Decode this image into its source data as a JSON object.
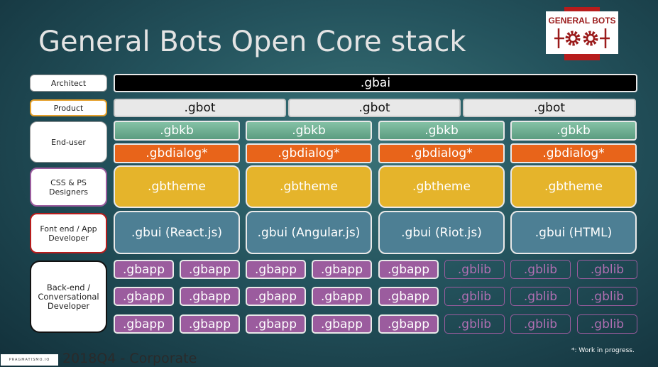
{
  "title": "General Bots Open Core stack",
  "logo": {
    "text": "GENERAL BOTS",
    "color": "#b71c1c"
  },
  "roles": {
    "architect": "Architect",
    "product": "Product",
    "end_user": "End-user",
    "designers": "CSS & PS Designers",
    "frontend": "Font end / App Developer",
    "backend": "Back-end  / Conversational Developer"
  },
  "layers": {
    "gbai": ".gbai",
    "gbot": ".gbot",
    "gbkb": ".gbkb",
    "gbdialog": ".gbdialog*",
    "gbtheme": ".gbtheme",
    "gbui": [
      ".gbui (React.js)",
      ".gbui (Angular.js)",
      ".gbui (Riot.js)",
      ".gbui (HTML)"
    ],
    "gbapp": ".gbapp",
    "gblib": ".gblib"
  },
  "footer": {
    "brand": "PRAGMATISMO.IO",
    "period": "2018Q4 - Corporate",
    "note": "*: Work in progress."
  },
  "colors": {
    "gbai": "#000000",
    "gbot": "#e8e8e8",
    "gbkb": "#6cab8f",
    "gbdialog": "#e8641a",
    "gbtheme": "#e5b42b",
    "gbui": "#4d7f94",
    "gbapp": "#9b5c9e"
  }
}
